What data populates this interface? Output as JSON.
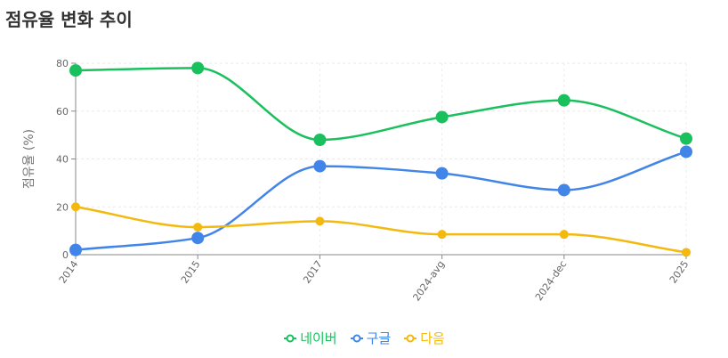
{
  "chart_data": {
    "type": "line",
    "title": "점유율 변화 추이",
    "xlabel": "",
    "ylabel": "점유율 (%)",
    "categories": [
      "2014",
      "2015",
      "2017",
      "2024-avg",
      "2024-dec",
      "2025"
    ],
    "ylim": [
      0,
      80
    ],
    "yticks": [
      0,
      20,
      40,
      60,
      80
    ],
    "grid": true,
    "legend_position": "bottom",
    "series": [
      {
        "name": "네이버",
        "color": "#1ac05e",
        "values": [
          77,
          78,
          48,
          57.5,
          64.5,
          48.5
        ]
      },
      {
        "name": "구글",
        "color": "#4285e8",
        "values": [
          2,
          7,
          37,
          34,
          27,
          43
        ]
      },
      {
        "name": "다음",
        "color": "#f4b90e",
        "values": [
          20,
          11.5,
          14,
          8.5,
          8.5,
          1
        ]
      }
    ]
  }
}
